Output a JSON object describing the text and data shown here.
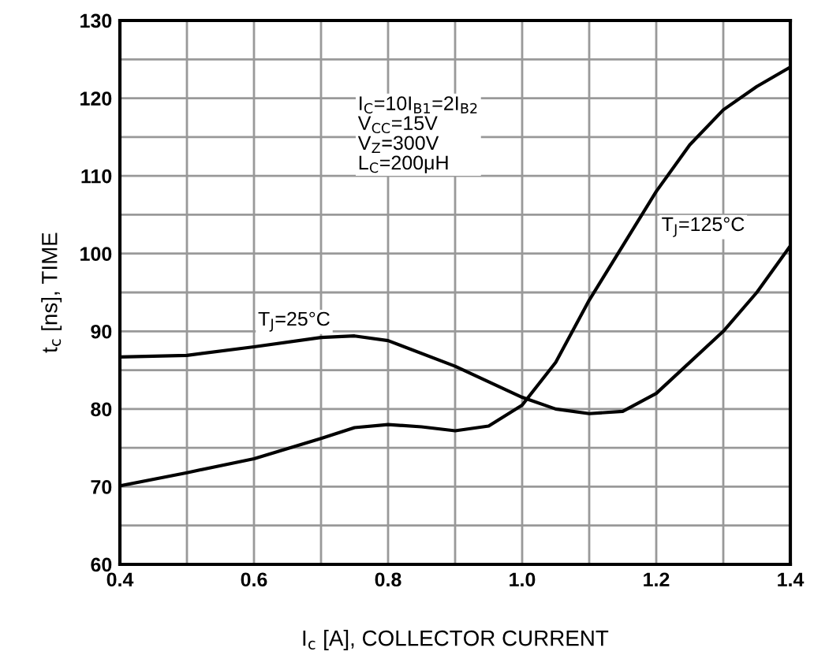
{
  "chart_data": {
    "type": "line",
    "xlabel": "I$_{c}$ [A], COLLECTOR CURRENT",
    "ylabel": "t$_{c}$ [ns], TIME",
    "annotations": [
      "I$_{C}$=10I$_{B1}$=2I$_{B2}$\nV$_{CC}$=15V\nV$_{Z}$=300V\nL$_{C}$=200μH"
    ],
    "series": [
      {
        "name": "T$_{J}$=25°C",
        "color": "#000000",
        "x": [
          0.4,
          0.5,
          0.6,
          0.7,
          0.75,
          0.8,
          0.9,
          1.0,
          1.05,
          1.1,
          1.15,
          1.2,
          1.3,
          1.35,
          1.4
        ],
        "values": [
          86.7,
          86.9,
          88,
          89.2,
          89.4,
          88.8,
          85.5,
          81.5,
          80,
          79.4,
          79.7,
          82,
          90,
          95,
          101
        ]
      },
      {
        "name": "T$_{J}$=125°C",
        "color": "#000000",
        "x": [
          0.4,
          0.5,
          0.6,
          0.7,
          0.75,
          0.8,
          0.85,
          0.9,
          0.95,
          1.0,
          1.05,
          1.1,
          1.15,
          1.2,
          1.25,
          1.3,
          1.35,
          1.4
        ],
        "values": [
          70.1,
          71.8,
          73.6,
          76.2,
          77.6,
          78,
          77.7,
          77.2,
          77.8,
          80.5,
          86,
          94,
          101,
          108,
          114,
          118.5,
          121.5,
          124
        ]
      }
    ],
    "xlim": [
      0.4,
      1.4
    ],
    "ylim": [
      60,
      130
    ],
    "xticks": [
      0.4,
      {
        "value": 0.5,
        "label": null
      },
      0.6,
      {
        "value": 0.7,
        "label": null
      },
      0.8,
      {
        "value": 0.9,
        "label": null
      },
      {
        "value": 1.0,
        "label": "1.0"
      },
      {
        "value": 1.1,
        "label": null
      },
      1.2,
      {
        "value": 1.3,
        "label": null
      },
      1.4
    ],
    "yticks": [
      60,
      {
        "value": 65,
        "label": null
      },
      70,
      {
        "value": 75,
        "label": null
      },
      80,
      {
        "value": 85,
        "label": null
      },
      90,
      {
        "value": 95,
        "label": null
      },
      100,
      {
        "value": 105,
        "label": null
      },
      110,
      {
        "value": 115,
        "label": null
      },
      120,
      {
        "value": 125,
        "label": null
      },
      130
    ],
    "grid": true,
    "legend": false,
    "marker": "none",
    "line_style": "solid"
  }
}
